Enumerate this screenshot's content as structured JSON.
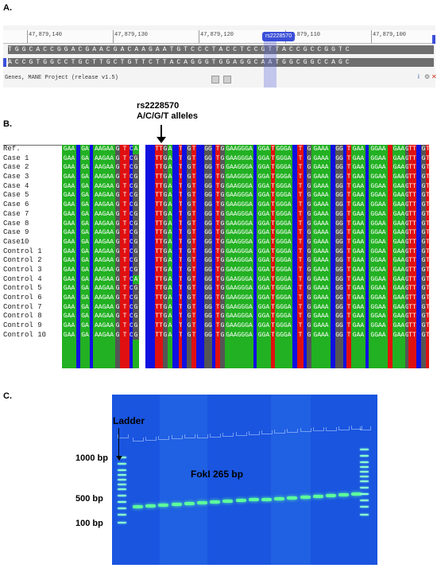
{
  "panel_labels": {
    "a": "A.",
    "b": "B.",
    "c": "C."
  },
  "panel_a": {
    "ruler": [
      "47,879,140",
      "47,879,130",
      "47,879,120",
      "47,879,110",
      "47,879,100"
    ],
    "snp_badge": "rs2228570",
    "top_seq": "TGGCACCGGACGAACGACAAGAATGTCCCTACCTCCGTTACCGCCGGTC",
    "bottom_seq": "ACCGTGGCCTGCTTGCTGTTCTTACAGGGTGGAGGCAATGGCGGCCAGC",
    "track": "Genes, MANE Project (release v1.5)",
    "icons": [
      "i",
      "⚙",
      "✕"
    ],
    "icon_colors": [
      "#3355aa",
      "#777777",
      "#cc3322"
    ]
  },
  "annotation": {
    "line1": "rs2228570",
    "line2": "A/C/G/T alleles"
  },
  "panel_b": {
    "samples": [
      "Ref.",
      "Case 1",
      "Case 2",
      "Case 3",
      "Case 4",
      "Case 5",
      "Case 6",
      "Case 7",
      "Case 8",
      "Case 9",
      "Case10",
      "Control 1",
      "Control 2",
      "Control 3",
      "Control 4",
      "Control 5",
      "Control 6",
      "Control 7",
      "Control 8",
      "Control 9",
      "Control 10"
    ],
    "colors": {
      "A": "#22b122",
      "C": "#1010e0",
      "G": "#555555",
      "T": "#e01010",
      "gap": "#ffffff"
    },
    "columns": [
      {
        "base": "A",
        "text": "GAA",
        "w": 18
      },
      {
        "base": "C",
        "text": "",
        "w": 5
      },
      {
        "base": "A",
        "text": "GA",
        "w": 12
      },
      {
        "base": "C",
        "text": "",
        "w": 4
      },
      {
        "base": "A",
        "text": "AAGAA",
        "w": 28
      },
      {
        "base": "G",
        "text": "G",
        "w": 6
      },
      {
        "base": "T",
        "text": "T",
        "w": 12
      },
      {
        "base": "C",
        "text": "C",
        "w": 4
      },
      {
        "base": "A",
        "text": "A",
        "w": 8
      },
      {
        "base": "gap",
        "text": "",
        "w": 8
      },
      {
        "base": "C",
        "text": "",
        "w": 12
      },
      {
        "base": "T",
        "text": "TT",
        "w": 10
      },
      {
        "base": "G",
        "text": "G",
        "w": 6
      },
      {
        "base": "A",
        "text": "A",
        "w": 6
      },
      {
        "base": "C",
        "text": "",
        "w": 8
      },
      {
        "base": "T",
        "text": "T",
        "w": 4
      },
      {
        "base": "C",
        "text": "",
        "w": 6
      },
      {
        "base": "G",
        "text": "G",
        "w": 6
      },
      {
        "base": "T",
        "text": "T",
        "w": 6
      },
      {
        "base": "C",
        "text": "",
        "w": 10
      },
      {
        "base": "G",
        "text": "GG",
        "w": 10
      },
      {
        "base": "C",
        "text": "",
        "w": 4
      },
      {
        "base": "T",
        "text": "T",
        "w": 6
      },
      {
        "base": "G",
        "text": "G",
        "w": 6
      },
      {
        "base": "A",
        "text": "GAAGGGA",
        "w": 36
      },
      {
        "base": "C",
        "text": "",
        "w": 4
      },
      {
        "base": "A",
        "text": "GGA",
        "w": 18
      },
      {
        "base": "T",
        "text": "T",
        "w": 5
      },
      {
        "base": "A",
        "text": "GGGA",
        "w": 22
      },
      {
        "base": "C",
        "text": "",
        "w": 6
      },
      {
        "base": "T",
        "text": "T",
        "w": 8
      },
      {
        "base": "C",
        "text": "",
        "w": 4
      },
      {
        "base": "G",
        "text": "G",
        "w": 6
      },
      {
        "base": "A",
        "text": "GAAA",
        "w": 24
      },
      {
        "base": "C",
        "text": "",
        "w": 6
      },
      {
        "base": "G",
        "text": "GG",
        "w": 10
      },
      {
        "base": "C",
        "text": "",
        "w": 4
      },
      {
        "base": "T",
        "text": "T",
        "w": 6
      },
      {
        "base": "A",
        "text": "GAA",
        "w": 18
      },
      {
        "base": "C",
        "text": "",
        "w": 4
      },
      {
        "base": "A",
        "text": "GGAA",
        "w": 24
      },
      {
        "base": "T",
        "text": "",
        "w": 6
      },
      {
        "base": "A",
        "text": "GAA",
        "w": 16
      },
      {
        "base": "G",
        "text": "G",
        "w": 4
      },
      {
        "base": "T",
        "text": "TT",
        "w": 10
      },
      {
        "base": "C",
        "text": "",
        "w": 6
      },
      {
        "base": "G",
        "text": "G",
        "w": 6
      },
      {
        "base": "T",
        "text": "T",
        "w": 4
      }
    ],
    "snp_column_index": 8,
    "snp_cell_letters": [
      "A",
      "G",
      "G",
      "G",
      "G",
      "G",
      "G",
      "G",
      "G",
      "G",
      "G",
      "G",
      "G",
      "G",
      "A",
      "G",
      "G",
      "G",
      "G",
      "G",
      "G"
    ]
  },
  "panel_c": {
    "ladder_label": "Ladder",
    "bp_labels": [
      "1000 bp",
      "500 bp",
      "100 bp"
    ],
    "product_label": "FokI  265 bp",
    "sample_lanes": 18
  }
}
